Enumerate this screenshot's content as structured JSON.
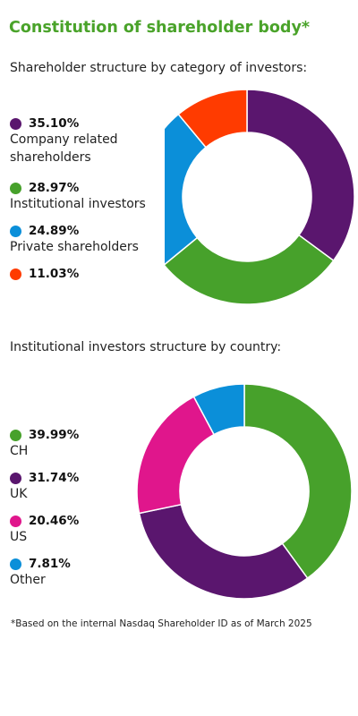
{
  "title": "Constitution of shareholder body*",
  "footnote": "*Based on the internal Nasdaq Shareholder ID as of March 2025",
  "chart_data": [
    {
      "type": "pie",
      "donut": true,
      "title": "Shareholder structure by category of investors:",
      "categories": [
        "Company related shareholders",
        "Institutional investors",
        "Private shareholders",
        ""
      ],
      "values": [
        35.1,
        28.97,
        24.89,
        11.03
      ],
      "display_values": [
        "35.10%",
        "28.97%",
        "24.89%",
        "11.03%"
      ],
      "label_lines": [
        [
          "Company related",
          "shareholders"
        ],
        [
          "Institutional investors"
        ],
        [
          "Private shareholders"
        ],
        []
      ],
      "colors": [
        "#5a166e",
        "#47a12b",
        "#0b8fd9",
        "#ff3b00"
      ],
      "legend": "left"
    },
    {
      "type": "pie",
      "donut": true,
      "title": "Institutional investors structure by country:",
      "categories": [
        "CH",
        "UK",
        "US",
        "Other"
      ],
      "values": [
        39.99,
        31.74,
        20.46,
        7.81
      ],
      "display_values": [
        "39.99%",
        "31.74%",
        "20.46%",
        "7.81%"
      ],
      "label_lines": [
        [
          "CH"
        ],
        [
          "UK"
        ],
        [
          "US"
        ],
        [
          "Other"
        ]
      ],
      "colors": [
        "#47a12b",
        "#5a166e",
        "#e0168c",
        "#0b8fd9"
      ],
      "legend": "left"
    }
  ]
}
